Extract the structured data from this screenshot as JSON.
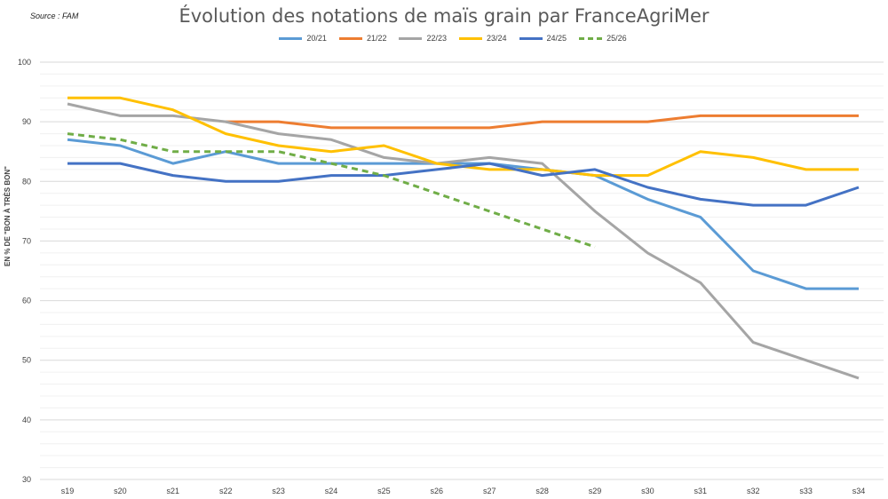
{
  "source": "Source : FAM",
  "chart_data": {
    "type": "line",
    "title": "Évolution des notations de maïs grain par FranceAgriMer",
    "xlabel": "",
    "ylabel": "EN % DE \"BON À TRÈS BON\"",
    "ylim": [
      30,
      100
    ],
    "yticks": [
      30,
      40,
      50,
      60,
      70,
      80,
      90,
      100
    ],
    "grid": true,
    "legend_position": "top",
    "categories": [
      "s19",
      "s20",
      "s21",
      "s22",
      "s23",
      "s24",
      "s25",
      "s26",
      "s27",
      "s28",
      "s29",
      "s30",
      "s31",
      "s32",
      "s33",
      "s34"
    ],
    "series": [
      {
        "name": "20/21",
        "color": "#5b9bd5",
        "dashed": false,
        "values": [
          87,
          86,
          83,
          85,
          83,
          83,
          83,
          83,
          83,
          82,
          81,
          77,
          74,
          65,
          62,
          62
        ]
      },
      {
        "name": "21/22",
        "color": "#ed7d31",
        "dashed": false,
        "values": [
          null,
          null,
          null,
          90,
          90,
          89,
          89,
          89,
          89,
          90,
          90,
          90,
          91,
          91,
          91,
          91
        ]
      },
      {
        "name": "22/23",
        "color": "#a5a5a5",
        "dashed": false,
        "values": [
          93,
          91,
          91,
          90,
          88,
          87,
          84,
          83,
          84,
          83,
          75,
          68,
          63,
          53,
          50,
          47
        ]
      },
      {
        "name": "23/24",
        "color": "#ffc000",
        "dashed": false,
        "values": [
          94,
          94,
          92,
          88,
          86,
          85,
          86,
          83,
          82,
          82,
          81,
          81,
          85,
          84,
          82,
          82
        ]
      },
      {
        "name": "24/25",
        "color": "#4472c4",
        "dashed": false,
        "values": [
          83,
          83,
          81,
          80,
          80,
          81,
          81,
          82,
          83,
          81,
          82,
          79,
          77,
          76,
          76,
          79
        ]
      },
      {
        "name": "25/26",
        "color": "#70ad47",
        "dashed": true,
        "values": [
          88,
          87,
          85,
          85,
          85,
          83,
          81,
          78,
          75,
          72,
          69,
          null,
          null,
          null,
          null,
          null
        ]
      }
    ]
  }
}
